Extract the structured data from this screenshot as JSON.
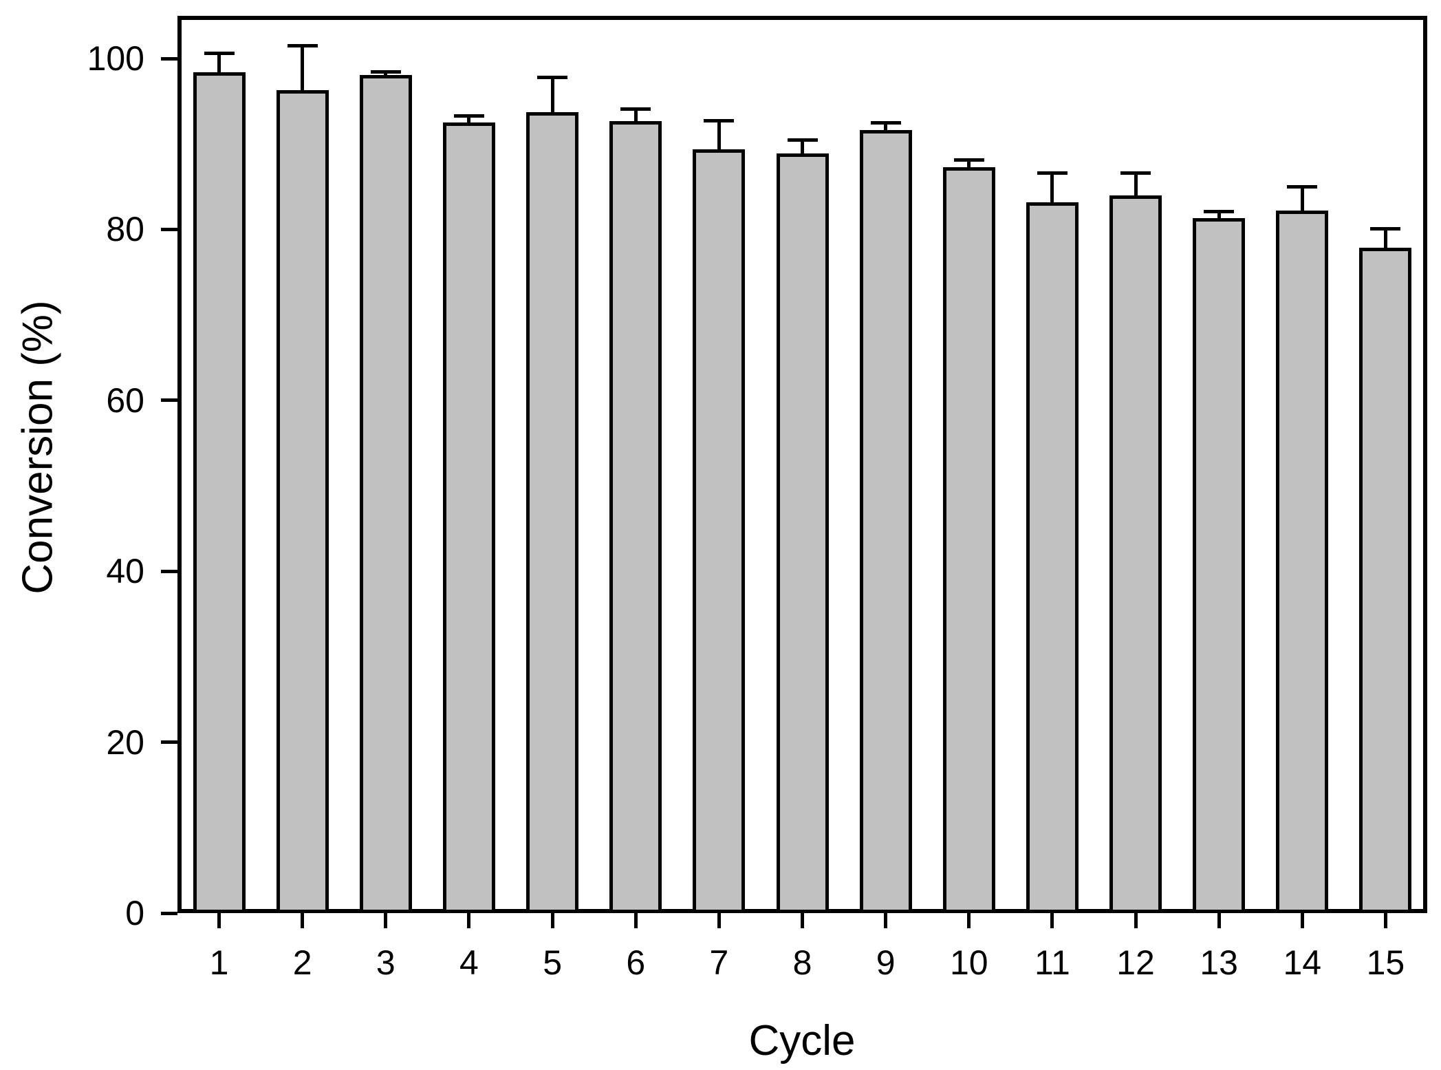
{
  "chart_data": {
    "type": "bar",
    "title": "",
    "xlabel": "Cycle",
    "ylabel": "Conversion (%)",
    "categories": [
      "1",
      "2",
      "3",
      "4",
      "5",
      "6",
      "7",
      "8",
      "9",
      "10",
      "11",
      "12",
      "13",
      "14",
      "15"
    ],
    "values": [
      98.4,
      96.3,
      98.1,
      92.5,
      93.7,
      92.7,
      89.4,
      88.9,
      91.6,
      87.3,
      83.2,
      84.0,
      81.3,
      82.2,
      77.9
    ],
    "errors": [
      2.2,
      5.2,
      0.3,
      0.8,
      4.1,
      1.4,
      3.3,
      1.6,
      0.9,
      0.8,
      3.4,
      2.6,
      0.8,
      2.8,
      2.2
    ],
    "error_direction": "upper-only",
    "ylim": [
      0,
      105
    ],
    "yticks": [
      0,
      20,
      40,
      60,
      80,
      100
    ],
    "grid": false,
    "legend": false,
    "frame": "full-box",
    "bar_fill": "#c1c1c1",
    "bar_border": "#000000",
    "axis_color": "#000000",
    "background": "#ffffff"
  }
}
